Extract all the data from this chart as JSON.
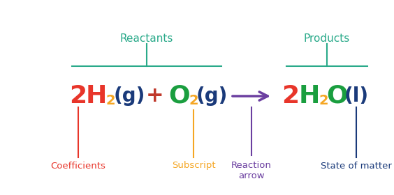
{
  "bg_color": "#ffffff",
  "reactants_label": "Reactants",
  "products_label": "Products",
  "coefficients_label": "Coefficients",
  "subscript_label": "Subscript",
  "reaction_arrow_label": "Reaction\narrow",
  "state_of_matter_label": "State of matter",
  "teal_color": "#2aaa8a",
  "red_color": "#e8352a",
  "green_color": "#1a9e3f",
  "orange_color": "#f5a623",
  "purple_color": "#6b3fa0",
  "navy_color": "#1a3a7a",
  "plus_color": "#c0392b",
  "figsize": [
    5.64,
    2.8
  ],
  "dpi": 100
}
